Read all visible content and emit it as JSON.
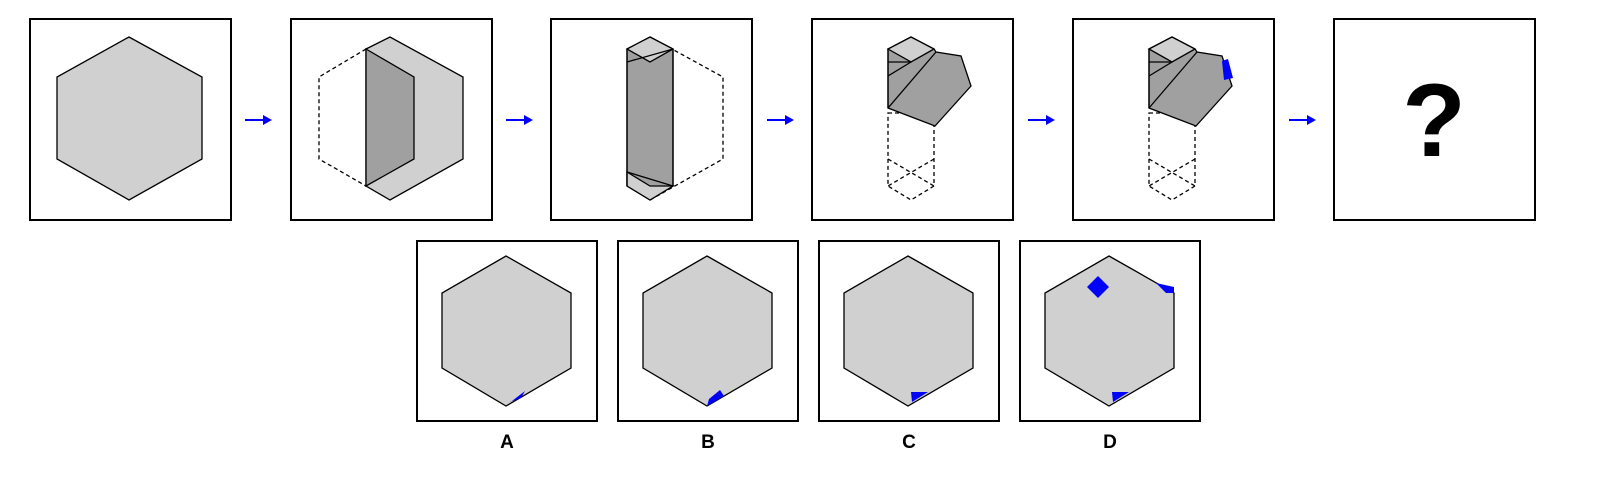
{
  "puzzle": {
    "sequence_steps": [
      "hexagon-unfolded",
      "fold-right-flap",
      "fold-left-flap",
      "fold-upper-flap",
      "punch-hole",
      "unknown"
    ],
    "question_mark": "?"
  },
  "options": [
    {
      "label": "A"
    },
    {
      "label": "B"
    },
    {
      "label": "C"
    },
    {
      "label": "D"
    }
  ],
  "colors": {
    "paper": "#d0d0d0",
    "paper_folded": "#a0a0a0",
    "hole": "#0000ff",
    "arrow": "#0000ff",
    "stroke": "#000000"
  }
}
